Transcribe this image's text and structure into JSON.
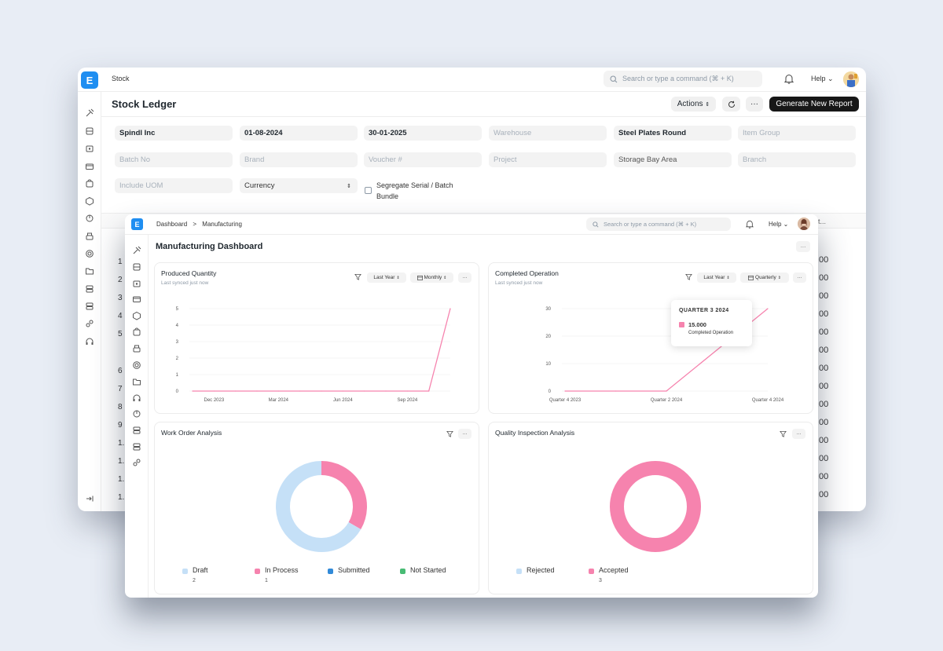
{
  "back_window": {
    "module": "Stock",
    "search_placeholder": "Search or type a command (⌘ + K)",
    "help_label": "Help",
    "page_title": "Stock Ledger",
    "actions_label": "Actions",
    "more_label": "···",
    "generate_label": "Generate New Report",
    "filters": {
      "company": "Spindl Inc",
      "from_date": "01-08-2024",
      "to_date": "30-01-2025",
      "warehouse": "Warehouse",
      "item": "Steel Plates Round",
      "item_group": "Item Group",
      "batch_no": "Batch No",
      "brand": "Brand",
      "voucher": "Voucher #",
      "project": "Project",
      "storage": "Storage Bay Area",
      "branch": "Branch",
      "include_uom": "Include UOM",
      "currency": "Currency",
      "segregate_line1": "Segregate Serial / Batch",
      "segregate_line2": "Bundle"
    },
    "table_header_tail": "t...",
    "row_numbers": [
      "1",
      "2",
      "3",
      "4",
      "5",
      "6",
      "7",
      "8",
      "9",
      "1.",
      "1.",
      "1.",
      "1.",
      "1."
    ],
    "row_values": [
      ".00",
      ".00",
      ".00",
      ".00",
      ".00",
      ".00",
      ".00",
      ".00",
      ".00",
      ".00",
      ".00",
      ".00",
      ".00",
      ".00",
      ".00"
    ]
  },
  "front_window": {
    "breadcrumb": [
      "Dashboard",
      "Manufacturing"
    ],
    "breadcrumb_sep": ">",
    "search_placeholder": "Search or type a command (⌘ + K)",
    "help_label": "Help",
    "page_title": "Manufacturing Dashboard",
    "more_label": "···",
    "cards": {
      "produced": {
        "title": "Produced Quantity",
        "subtitle": "Last synced just now",
        "range": "Last Year",
        "interval": "Monthly"
      },
      "completed": {
        "title": "Completed Operation",
        "subtitle": "Last synced just now",
        "range": "Last Year",
        "interval": "Quarterly",
        "tooltip_title": "QUARTER 3 2024",
        "tooltip_value": "15.000",
        "tooltip_label": "Completed Operation"
      },
      "work_order": {
        "title": "Work Order Analysis",
        "legend": [
          {
            "label": "Draft",
            "count": "2"
          },
          {
            "label": "In Process",
            "count": "1"
          },
          {
            "label": "Submitted",
            "count": ""
          },
          {
            "label": "Not Started",
            "count": ""
          }
        ]
      },
      "quality": {
        "title": "Quality Inspection Analysis",
        "legend": [
          {
            "label": "Rejected",
            "count": ""
          },
          {
            "label": "Accepted",
            "count": "3"
          }
        ]
      }
    }
  },
  "colors": {
    "accent": "#f683ae",
    "draft": "#c5e0f7",
    "submitted": "#318ad8",
    "not_started": "#48bb74",
    "logo": "#1f8ef1"
  },
  "chart_data": [
    {
      "type": "line",
      "x": [
        "Nov 2023",
        "Dec 2023",
        "Jan 2024",
        "Feb 2024",
        "Mar 2024",
        "Apr 2024",
        "May 2024",
        "Jun 2024",
        "Jul 2024",
        "Aug 2024",
        "Sep 2024",
        "Oct 2024",
        "Nov 2024"
      ],
      "x_tick_labels": [
        "Dec 2023",
        "Mar 2024",
        "Jun 2024",
        "Sep 2024"
      ],
      "series": [
        {
          "name": "",
          "values": [
            0,
            0,
            0,
            0,
            0,
            0,
            0,
            0,
            0,
            0,
            0,
            0,
            5
          ]
        }
      ],
      "ylim": [
        0,
        5
      ],
      "yticks": [
        0,
        1,
        2,
        3,
        4,
        5
      ],
      "title": "Produced Quantity"
    },
    {
      "type": "line",
      "x": [
        "Quarter 4 2023",
        "Quarter 1 2024",
        "Quarter 2 2024",
        "Quarter 3 2024",
        "Quarter 4 2024"
      ],
      "x_tick_labels": [
        "Quarter 4 2023",
        "Quarter 2 2024",
        "Quarter 4 2024"
      ],
      "series": [
        {
          "name": "Completed Operation",
          "values": [
            0,
            0,
            0,
            15,
            30
          ]
        }
      ],
      "ylim": [
        0,
        30
      ],
      "yticks": [
        0,
        10,
        20,
        30
      ],
      "title": "Completed Operation"
    },
    {
      "type": "pie",
      "title": "Work Order Analysis",
      "categories": [
        "Draft",
        "In Process",
        "Submitted",
        "Not Started"
      ],
      "values": [
        2,
        1,
        0,
        0
      ]
    },
    {
      "type": "pie",
      "title": "Quality Inspection Analysis",
      "categories": [
        "Rejected",
        "Accepted"
      ],
      "values": [
        0,
        3
      ]
    }
  ]
}
